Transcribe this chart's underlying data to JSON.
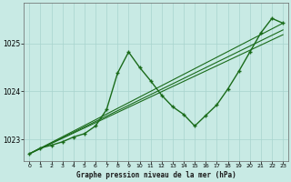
{
  "title": "Graphe pression niveau de la mer (hPa)",
  "bg_color": "#c8eae4",
  "grid_color": "#a8d4ce",
  "line_color": "#1a6b1a",
  "xlim": [
    -0.5,
    23.5
  ],
  "ylim": [
    1022.55,
    1025.85
  ],
  "yticks": [
    1023,
    1024,
    1025
  ],
  "xticks": [
    0,
    1,
    2,
    3,
    4,
    5,
    6,
    7,
    8,
    9,
    10,
    11,
    12,
    13,
    14,
    15,
    16,
    17,
    18,
    19,
    20,
    21,
    22,
    23
  ],
  "wave_x": [
    0,
    1,
    2,
    3,
    4,
    5,
    6,
    7,
    8,
    9,
    10,
    11,
    12,
    13,
    14,
    15,
    16,
    17,
    18,
    19,
    20,
    21,
    22,
    23
  ],
  "wave_y": [
    1022.7,
    1022.82,
    1022.88,
    1022.95,
    1023.05,
    1023.12,
    1023.28,
    1023.62,
    1024.38,
    1024.82,
    1024.5,
    1024.22,
    1023.92,
    1023.68,
    1023.52,
    1023.28,
    1023.5,
    1023.72,
    1024.05,
    1024.42,
    1024.82,
    1025.22,
    1025.52,
    1025.42
  ],
  "trend1_x": [
    0,
    23
  ],
  "trend1_y": [
    1022.7,
    1025.18
  ],
  "trend2_x": [
    0,
    23
  ],
  "trend2_y": [
    1022.7,
    1025.28
  ],
  "trend3_x": [
    0,
    23
  ],
  "trend3_y": [
    1022.7,
    1025.42
  ]
}
